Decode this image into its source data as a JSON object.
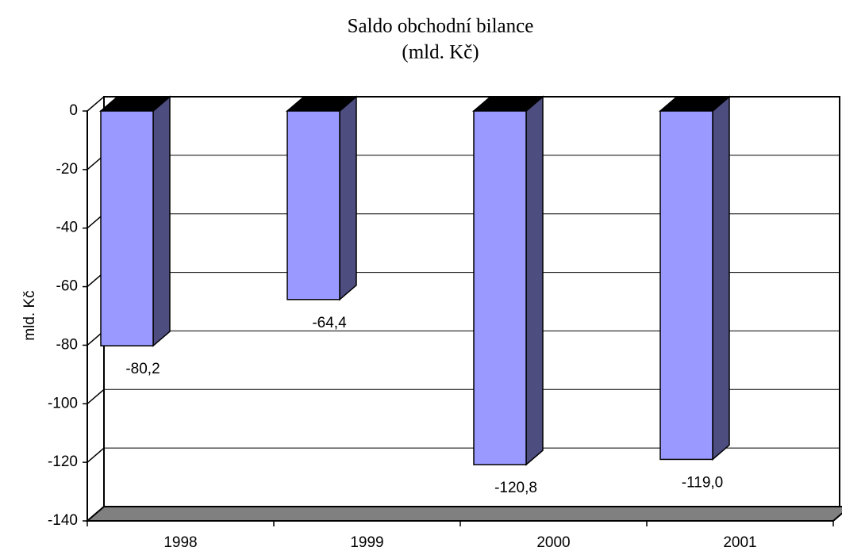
{
  "chart_data": {
    "type": "bar3d",
    "title": [
      "Saldo obchodní bilance",
      "(mld. Kč)"
    ],
    "y_label": "mld. Kč",
    "categories": [
      "1998",
      "1999",
      "2000",
      "2001"
    ],
    "values": [
      -80.2,
      -64.4,
      -120.8,
      -119.0
    ],
    "value_labels": [
      "-80,2",
      "-64,4",
      "-120,8",
      "-119,0"
    ],
    "color": "#9999ff",
    "side_color": "#4d4d80",
    "top_color": "#000000",
    "ylim": [
      -140,
      0
    ],
    "yticks": [
      0,
      -20,
      -40,
      -60,
      -80,
      -100,
      -120,
      -140
    ],
    "grid": true
  }
}
